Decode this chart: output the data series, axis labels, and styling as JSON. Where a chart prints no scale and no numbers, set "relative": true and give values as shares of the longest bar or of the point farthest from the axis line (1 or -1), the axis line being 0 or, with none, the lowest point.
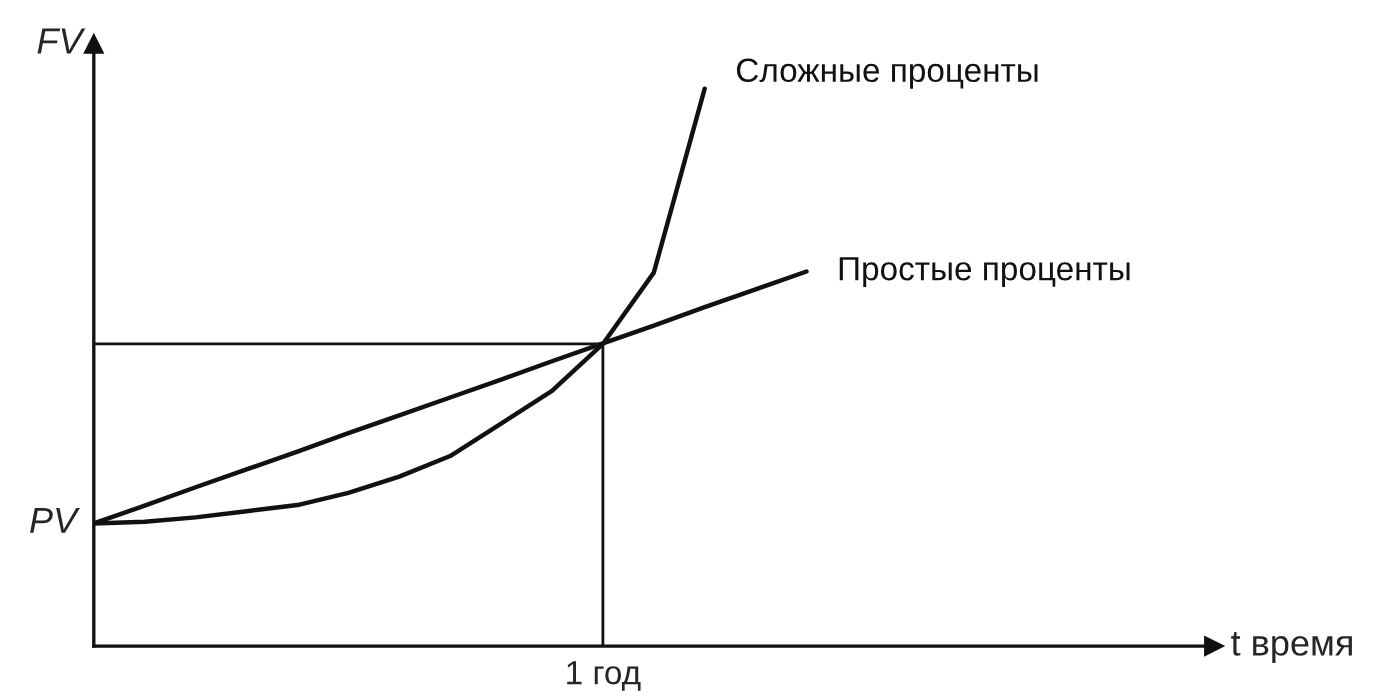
{
  "chart_data": {
    "type": "line",
    "relative": true,
    "xlabel": "t время",
    "ylabel": "FV",
    "legend": false,
    "marker": "none",
    "line_style": "solid",
    "categories": [
      null,
      null,
      null,
      null,
      null,
      null,
      null,
      null,
      null,
      null,
      null,
      null,
      null,
      null,
      null,
      null,
      null,
      null,
      null,
      null,
      null,
      null,
      null
    ],
    "annotations": [
      "PV",
      "1 год"
    ],
    "ref_lines": [
      {
        "axis": "y",
        "value": 0.542,
        "color": "#111111"
      }
    ],
    "series": [
      {
        "name": "Сложные проценты",
        "color": "#111111",
        "values": [
          0.22,
          0.223,
          0.231,
          0.242,
          0.253,
          0.275,
          0.304,
          0.341,
          0.399,
          0.458,
          0.542,
          0.67,
          1.0,
          null,
          null,
          null,
          null,
          null,
          null,
          null,
          null,
          null,
          null
        ]
      },
      {
        "name": "Простые проценты",
        "color": "#111111",
        "values": [
          0.22,
          0.252,
          0.285,
          0.317,
          0.349,
          0.382,
          0.414,
          0.446,
          0.478,
          0.511,
          0.543,
          0.575,
          0.608,
          0.64,
          0.672,
          null,
          null,
          null,
          null,
          null,
          null,
          null,
          null
        ]
      }
    ]
  }
}
